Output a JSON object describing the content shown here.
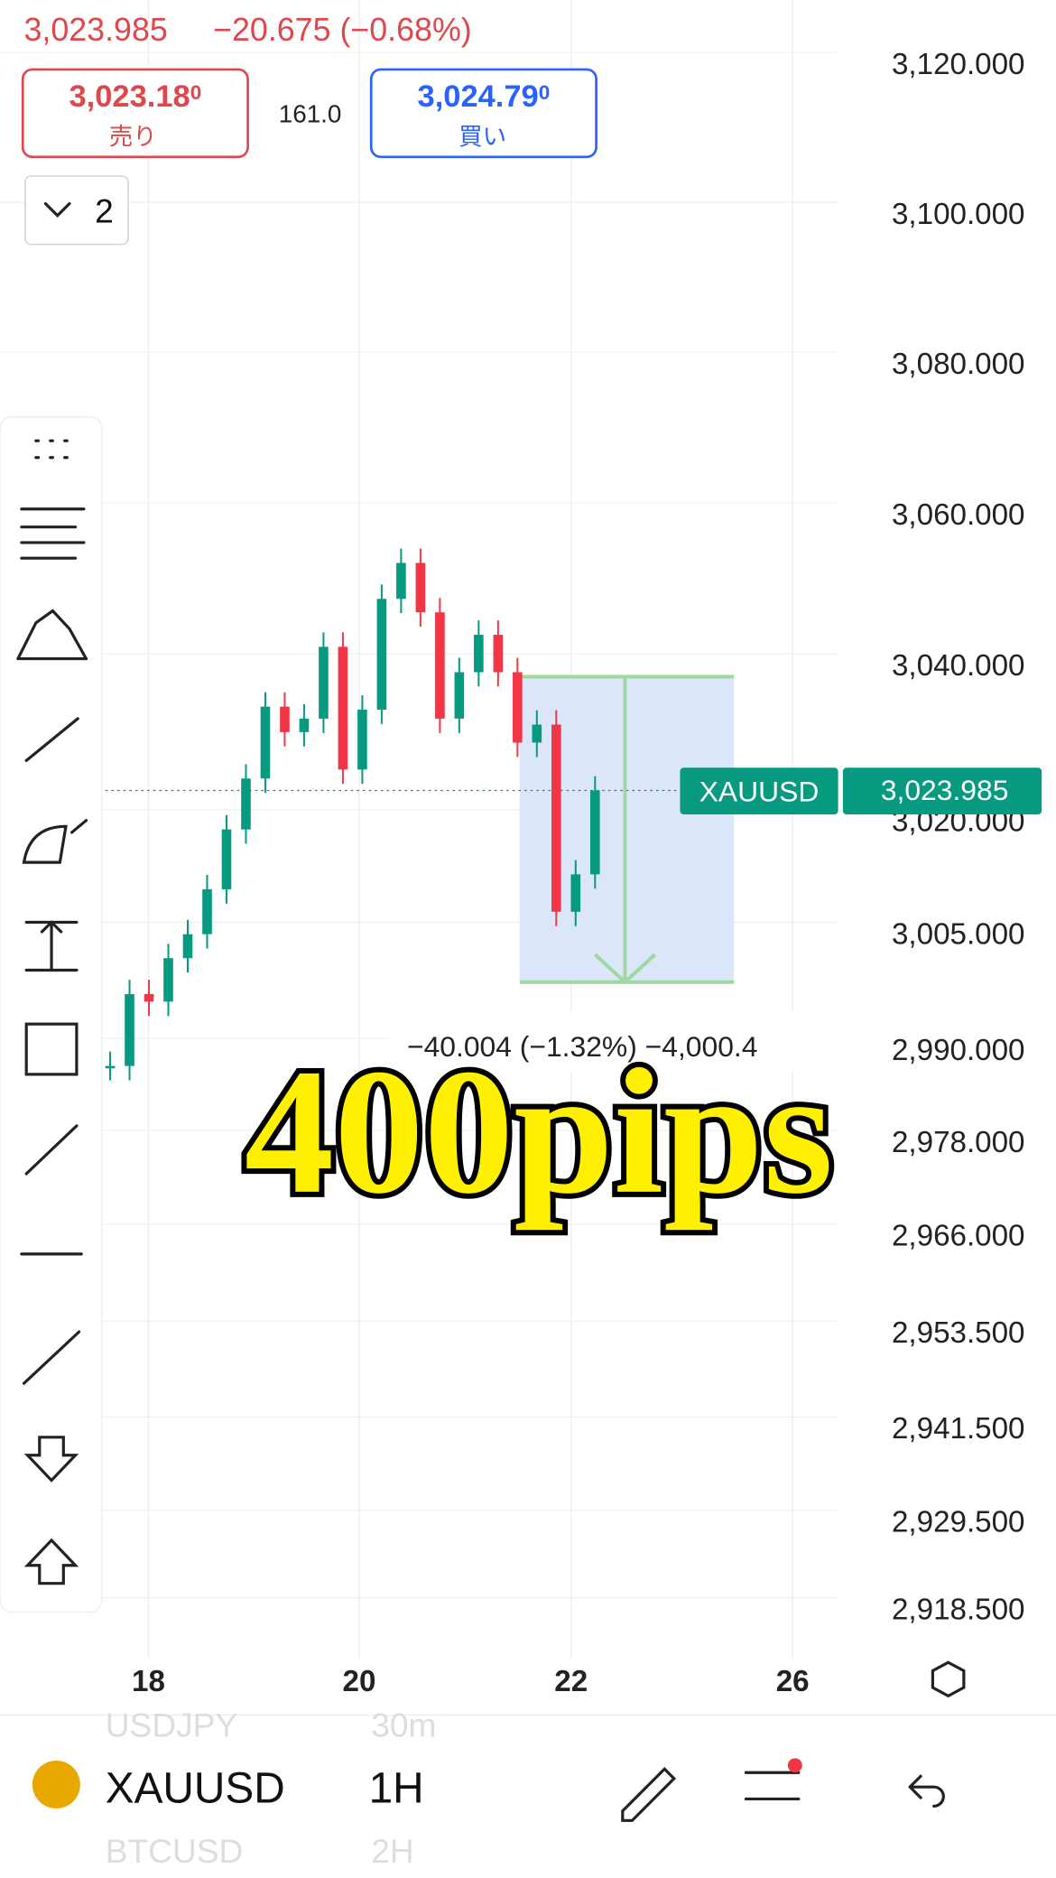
{
  "header": {
    "last_price": "3,023.985",
    "change": "−20.675 (−0.68%)",
    "sell": {
      "price": "3,023.18",
      "fraction": "0",
      "label": "売り"
    },
    "spread": "161.0",
    "buy": {
      "price": "3,024.79",
      "fraction": "0",
      "label": "買い"
    },
    "layout_count": "2"
  },
  "chart": {
    "price_labels": [
      "3,120.000",
      "3,100.000",
      "3,080.000",
      "3,060.000",
      "3,040.000",
      "3,020.000",
      "3,005.000",
      "2,990.000",
      "2,978.000",
      "2,966.000",
      "2,953.500",
      "2,941.500",
      "2,929.500",
      "2,918.500"
    ],
    "date_labels": [
      "18",
      "20",
      "22",
      "26"
    ],
    "symbol_tag": "XAUUSD",
    "price_tag": "3,023.985",
    "measure": "−40.004 (−1.32%) −4,000.4",
    "closes": [
      2986.4,
      2996,
      2995,
      3000.8,
      3004,
      3010,
      3018,
      3024.8,
      3034.4,
      3031,
      3032.8,
      3042.4,
      3026,
      3034,
      3048.8,
      3053.6,
      3047,
      3032.8,
      3039,
      3044,
      3039,
      3029.6,
      3032,
      3007,
      3012,
      3023.2
    ],
    "overlay": "400pips"
  },
  "footer": {
    "prev": {
      "symbol": "USDJPY",
      "interval": "30m"
    },
    "current": {
      "symbol": "XAUUSD",
      "interval": "1H"
    },
    "next": {
      "symbol": "BTCUSD",
      "interval": "2H"
    }
  }
}
